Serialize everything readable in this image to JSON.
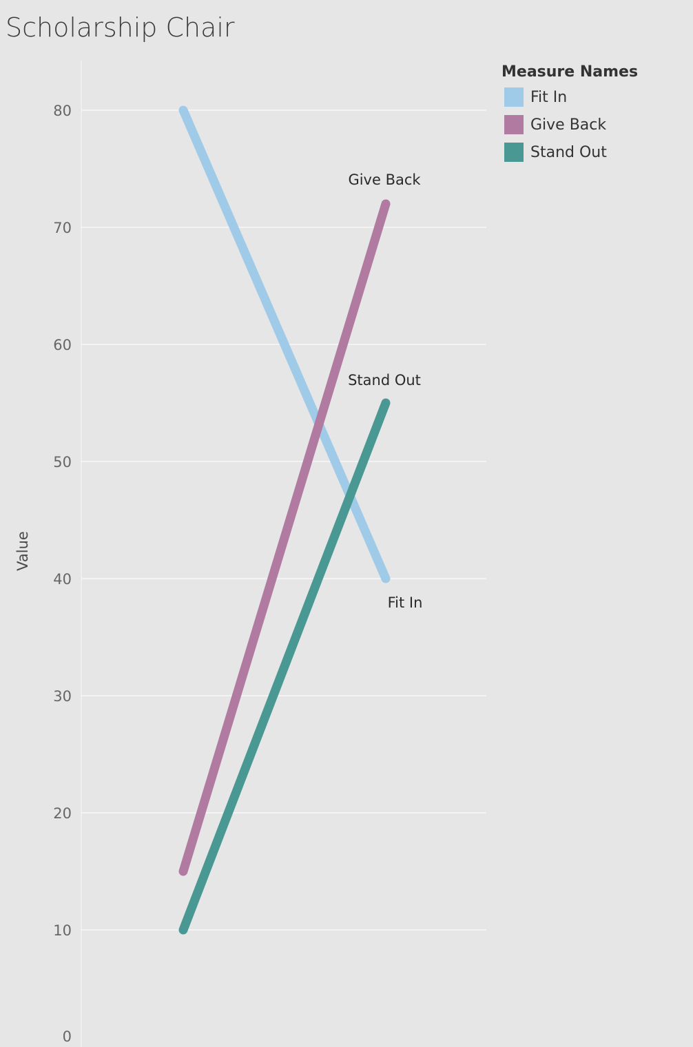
{
  "chart_data": {
    "type": "line",
    "title": "Scholarship Chair",
    "xlabel": "",
    "ylabel": "Value",
    "ylim": [
      0,
      84
    ],
    "yticks": [
      0,
      10,
      20,
      30,
      40,
      50,
      60,
      70,
      80
    ],
    "grid": true,
    "legend": {
      "title": "Measure Names",
      "position": "top-right"
    },
    "series": [
      {
        "name": "Fit In",
        "values": [
          80,
          40
        ],
        "color": "#a0cbe8",
        "end_label": "Fit In"
      },
      {
        "name": "Give Back",
        "values": [
          15,
          72
        ],
        "color": "#b07aa1",
        "end_label": "Give Back"
      },
      {
        "name": "Stand Out",
        "values": [
          10,
          55
        ],
        "color": "#499894",
        "end_label": "Stand Out"
      }
    ]
  }
}
